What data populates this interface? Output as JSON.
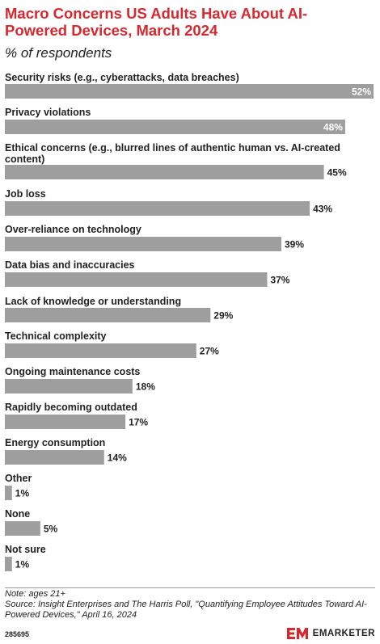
{
  "header": {
    "title": "Macro Concerns US Adults Have About AI-Powered Devices, March 2024",
    "subtitle": "% of respondents"
  },
  "chart_data": {
    "type": "bar",
    "orientation": "horizontal",
    "categories": [
      "Security risks (e.g., cyberattacks, data breaches)",
      "Privacy violations",
      "Ethical concerns (e.g., blurred lines of authentic human vs. AI-created content)",
      "Job loss",
      "Over-reliance on technology",
      "Data bias and inaccuracies",
      "Lack of knowledge or understanding",
      "Technical complexity",
      "Ongoing maintenance costs",
      "Rapidly becoming outdated",
      "Energy consumption",
      "Other",
      "None",
      "Not sure"
    ],
    "values": [
      52,
      48,
      45,
      43,
      39,
      37,
      29,
      27,
      18,
      17,
      14,
      1,
      5,
      1
    ],
    "value_labels": [
      "52%",
      "48%",
      "45%",
      "43%",
      "39%",
      "37%",
      "29%",
      "27%",
      "18%",
      "17%",
      "14%",
      "1%",
      "5%",
      "1%"
    ],
    "xlim": [
      0,
      52
    ],
    "bar_color": "#9e9e9e",
    "grid": false
  },
  "footer": {
    "note": "Note: ages 21+",
    "source": "Source: Insight Enterprises and The Harris Poll, \"Quantifying Employee Attitudes Toward AI-Powered Devices,\" April 16, 2024",
    "chart_id": "285695",
    "brand": "EMARKETER",
    "brand_color": "#d7282f"
  }
}
